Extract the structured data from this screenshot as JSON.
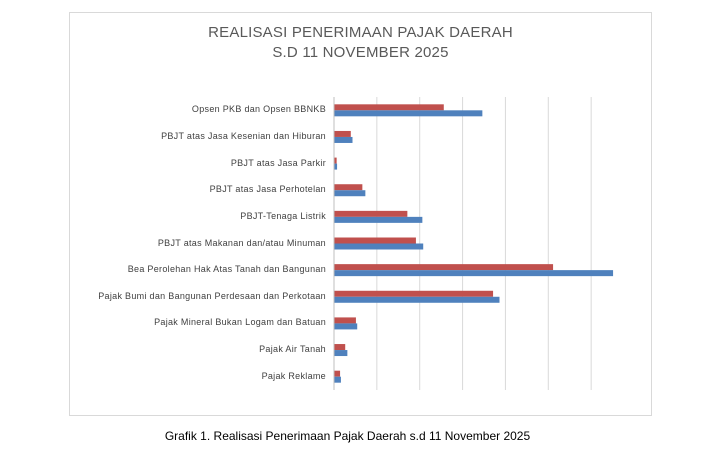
{
  "chart_data": {
    "type": "bar",
    "orientation": "horizontal",
    "title": "REALISASI PENERIMAAN PAJAK DAERAH",
    "subtitle": "S.D 11 NOVEMBER 2025",
    "xlabel": "",
    "ylabel": "",
    "grid": true,
    "legend": "none",
    "xlim": [
      0,
      7
    ],
    "categories": [
      "Opsen PKB dan Opsen BBNKB",
      "PBJT atas Jasa Kesenian dan Hiburan",
      "PBJT atas Jasa Parkir",
      "PBJT atas Jasa Perhotelan",
      "PBJT-Tenaga Listrik",
      "PBJT atas Makanan dan/atau Minuman",
      "Bea Perolehan Hak Atas Tanah dan Bangunan",
      "Pajak Bumi dan Bangunan Perdesaan dan Perkotaan",
      "Pajak Mineral Bukan Logam dan Batuan",
      "Pajak Air Tanah",
      "Pajak Reklame"
    ],
    "series": [
      {
        "color": "#c0504d",
        "values": [
          2.55,
          0.38,
          0.05,
          0.65,
          1.7,
          1.9,
          5.1,
          3.7,
          0.5,
          0.25,
          0.13
        ]
      },
      {
        "color": "#4f81bd",
        "values": [
          3.45,
          0.42,
          0.06,
          0.72,
          2.05,
          2.07,
          6.5,
          3.85,
          0.53,
          0.3,
          0.15
        ]
      }
    ]
  },
  "caption": "Grafik 1. Realisasi Penerimaan Pajak Daerah s.d 11 November 2025"
}
